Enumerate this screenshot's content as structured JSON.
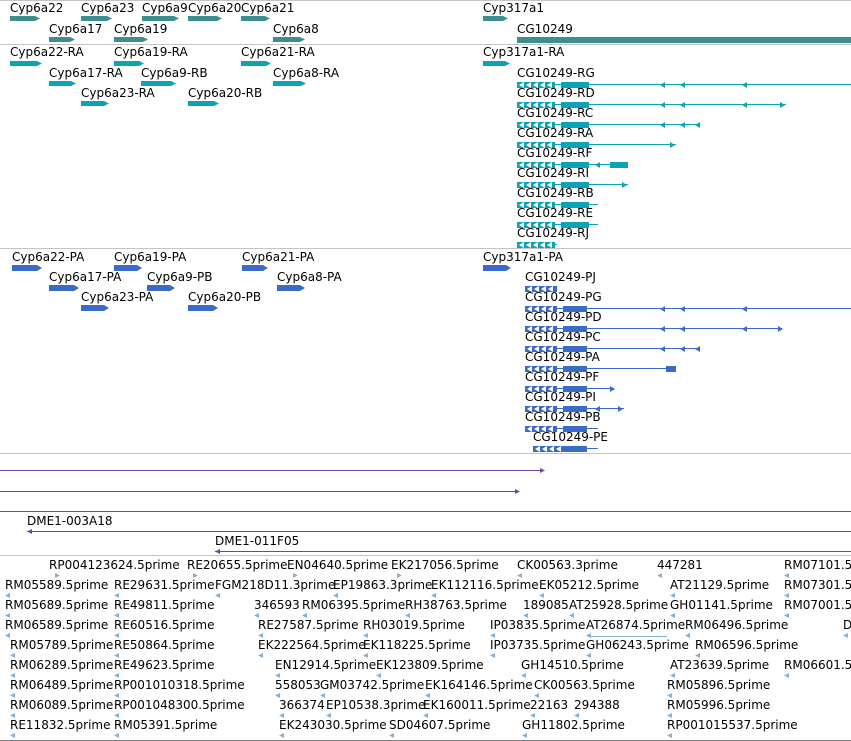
{
  "colors": {
    "gene": "#3d8f8f",
    "rna": "#0aa3b8",
    "protein": "#3a6bc8",
    "clone": "#6a4a9e",
    "est": "#7fb3dc",
    "separator": "#c4c4c4"
  },
  "gene_labels": [
    "Cyp6a22",
    "Cyp6a23",
    "Cyp6a9",
    "Cyp6a20",
    "Cyp6a21",
    "Cyp6a17",
    "Cyp6a19",
    "Cyp6a8",
    "Cyp317a1",
    "CG10249"
  ],
  "rna_labels": [
    "Cyp6a22-RA",
    "Cyp6a19-RA",
    "Cyp6a21-RA",
    "Cyp6a17-RA",
    "Cyp6a9-RB",
    "Cyp6a8-RA",
    "Cyp6a23-RA",
    "Cyp6a20-RB",
    "Cyp317a1-RA",
    "CG10249-RG",
    "CG10249-RD",
    "CG10249-RC",
    "CG10249-RA",
    "CG10249-RF",
    "CG10249-RI",
    "CG10249-RB",
    "CG10249-RE",
    "CG10249-RJ"
  ],
  "protein_labels": [
    "Cyp6a22-PA",
    "Cyp6a19-PA",
    "Cyp6a21-PA",
    "Cyp6a17-PA",
    "Cyp6a9-PB",
    "Cyp6a8-PA",
    "Cyp6a23-PA",
    "Cyp6a20-PB",
    "Cyp317a1-PA",
    "CG10249-PJ",
    "CG10249-PG",
    "CG10249-PD",
    "CG10249-PC",
    "CG10249-PA",
    "CG10249-PF",
    "CG10249-PI",
    "CG10249-PB",
    "CG10249-PE"
  ],
  "clone_labels": [
    "DME1-003A18",
    "DME1-011F05"
  ],
  "est_labels": [
    "RP004123624.5prime",
    "RE20655.5prime",
    "EN04640.5prime",
    "EK217056.5prime",
    "CK00563.3prime",
    "447281",
    "RM07101.5",
    "RM05589.5prime",
    "RE29631.5prime",
    "FGM218D11.3prime",
    "EP19863.3prime",
    "EK112116.5prime",
    "EK05212.5prime",
    "AT21129.5prime",
    "RM07301.5",
    "RM05689.5prime",
    "RE49811.5prime",
    "346593",
    "RM06395.5prime",
    "RH38763.5prime",
    "189085",
    "AT25928.5prime",
    "GH01141.5prime",
    "RM07001.5",
    "RM06589.5prime",
    "RE60516.5prime",
    "RE27587.5prime",
    "RH03019.5prime",
    "IP03835.5prime",
    "AT26874.5prime",
    "RM06496.5prime",
    "D",
    "RM05789.5prime",
    "RE50864.5prime",
    "EK222564.5prime",
    "EK118225.5prime",
    "IP03735.5prime",
    "GH06243.5prime",
    "RM06596.5prime",
    "RM06289.5prime",
    "RE49623.5prime",
    "EN12914.5prime",
    "EK123809.5prime",
    "GH14510.5prime",
    "AT23639.5prime",
    "RM06601.5",
    "RM06489.5prime",
    "RP001010318.5prime",
    "558053",
    "GM03742.5prime",
    "EK164146.5prime",
    "CK00563.5prime",
    "RM05896.5prime",
    "RM06089.5prime",
    "RP001048300.5prime",
    "366374",
    "EP10538.3prime",
    "EK160011.5prime",
    "22163",
    "294388",
    "RM05996.5prime",
    "RE11832.5prime",
    "RM05391.5prime",
    "EK243030.5prime",
    "SD04607.5prime",
    "GH11802.5prime",
    "RP001015537.5prime"
  ]
}
